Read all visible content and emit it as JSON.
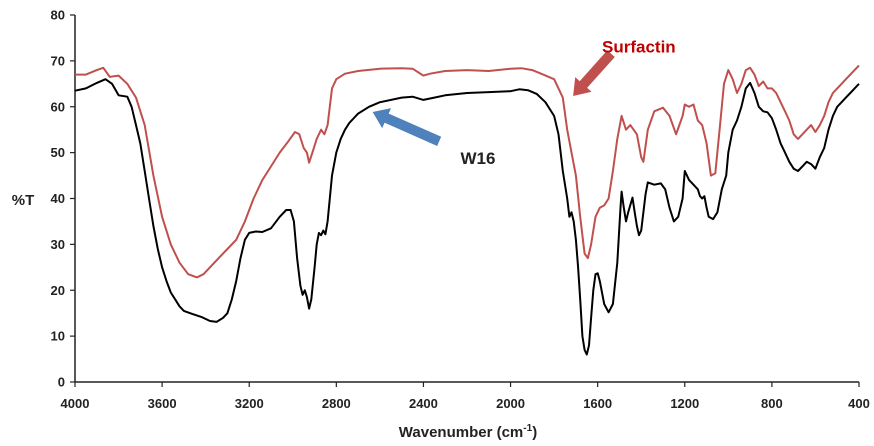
{
  "chart_data": {
    "type": "line",
    "title": "",
    "xlabel": "Wavenumber (cm",
    "xlabel_sup": "-1",
    "xlabel_tail": ")",
    "ylabel": "%T",
    "xlim": [
      4000,
      400
    ],
    "ylim": [
      0,
      80
    ],
    "x_ticks": [
      4000,
      3600,
      3200,
      2800,
      2400,
      2000,
      1600,
      1200,
      800,
      400
    ],
    "y_ticks": [
      0,
      10,
      20,
      30,
      40,
      50,
      60,
      70,
      80
    ],
    "grid": false,
    "legend": "none",
    "series": [
      {
        "name": "Surfactin",
        "color": "#c0504d",
        "points": [
          [
            4000,
            67
          ],
          [
            3950,
            67
          ],
          [
            3900,
            68
          ],
          [
            3870,
            68.5
          ],
          [
            3840,
            66.5
          ],
          [
            3800,
            66.8
          ],
          [
            3760,
            65
          ],
          [
            3720,
            62
          ],
          [
            3680,
            56
          ],
          [
            3640,
            45
          ],
          [
            3600,
            36
          ],
          [
            3560,
            30
          ],
          [
            3520,
            26
          ],
          [
            3480,
            23.5
          ],
          [
            3440,
            22.8
          ],
          [
            3410,
            23.5
          ],
          [
            3380,
            25
          ],
          [
            3340,
            27
          ],
          [
            3300,
            29
          ],
          [
            3260,
            31
          ],
          [
            3220,
            35
          ],
          [
            3180,
            40
          ],
          [
            3140,
            44
          ],
          [
            3100,
            47
          ],
          [
            3060,
            50
          ],
          [
            3020,
            52.5
          ],
          [
            2990,
            54.5
          ],
          [
            2970,
            54
          ],
          [
            2950,
            51
          ],
          [
            2935,
            50
          ],
          [
            2925,
            47.8
          ],
          [
            2910,
            50
          ],
          [
            2890,
            53
          ],
          [
            2870,
            55
          ],
          [
            2855,
            54
          ],
          [
            2840,
            56
          ],
          [
            2820,
            64
          ],
          [
            2800,
            66
          ],
          [
            2760,
            67.2
          ],
          [
            2700,
            67.8
          ],
          [
            2600,
            68.3
          ],
          [
            2500,
            68.4
          ],
          [
            2450,
            68.3
          ],
          [
            2400,
            66.8
          ],
          [
            2370,
            67.2
          ],
          [
            2300,
            67.8
          ],
          [
            2200,
            68
          ],
          [
            2100,
            67.8
          ],
          [
            2000,
            68.3
          ],
          [
            1950,
            68.4
          ],
          [
            1900,
            68
          ],
          [
            1850,
            67
          ],
          [
            1800,
            66
          ],
          [
            1760,
            62
          ],
          [
            1740,
            55
          ],
          [
            1720,
            50
          ],
          [
            1700,
            45
          ],
          [
            1680,
            36
          ],
          [
            1660,
            28
          ],
          [
            1645,
            27
          ],
          [
            1630,
            30
          ],
          [
            1610,
            36
          ],
          [
            1590,
            38
          ],
          [
            1570,
            38.5
          ],
          [
            1550,
            40
          ],
          [
            1530,
            46
          ],
          [
            1510,
            53
          ],
          [
            1490,
            58
          ],
          [
            1470,
            55
          ],
          [
            1450,
            56
          ],
          [
            1420,
            54
          ],
          [
            1400,
            49
          ],
          [
            1390,
            48
          ],
          [
            1370,
            55
          ],
          [
            1340,
            59
          ],
          [
            1300,
            59.8
          ],
          [
            1270,
            58
          ],
          [
            1240,
            54
          ],
          [
            1210,
            58
          ],
          [
            1200,
            60.5
          ],
          [
            1180,
            60
          ],
          [
            1160,
            60.5
          ],
          [
            1140,
            57
          ],
          [
            1120,
            56
          ],
          [
            1100,
            52
          ],
          [
            1080,
            45
          ],
          [
            1060,
            45.5
          ],
          [
            1040,
            55
          ],
          [
            1020,
            65
          ],
          [
            1000,
            68
          ],
          [
            980,
            66
          ],
          [
            960,
            63
          ],
          [
            940,
            65
          ],
          [
            920,
            68
          ],
          [
            900,
            68.5
          ],
          [
            880,
            67
          ],
          [
            860,
            64.5
          ],
          [
            840,
            65.5
          ],
          [
            820,
            64
          ],
          [
            800,
            64
          ],
          [
            780,
            63
          ],
          [
            760,
            61
          ],
          [
            740,
            59
          ],
          [
            720,
            57
          ],
          [
            700,
            54
          ],
          [
            680,
            53
          ],
          [
            660,
            54
          ],
          [
            640,
            55
          ],
          [
            620,
            56
          ],
          [
            600,
            54.5
          ],
          [
            580,
            56
          ],
          [
            560,
            58
          ],
          [
            540,
            61
          ],
          [
            520,
            63
          ],
          [
            500,
            64
          ],
          [
            480,
            65
          ],
          [
            460,
            66
          ],
          [
            440,
            67
          ],
          [
            420,
            68
          ],
          [
            400,
            69
          ]
        ]
      },
      {
        "name": "W16",
        "color": "#000000",
        "points": [
          [
            4000,
            63.5
          ],
          [
            3950,
            64
          ],
          [
            3900,
            65.2
          ],
          [
            3860,
            66
          ],
          [
            3830,
            65
          ],
          [
            3800,
            62.5
          ],
          [
            3760,
            62.2
          ],
          [
            3740,
            60
          ],
          [
            3720,
            56
          ],
          [
            3700,
            52
          ],
          [
            3680,
            46
          ],
          [
            3660,
            40
          ],
          [
            3640,
            34
          ],
          [
            3620,
            29
          ],
          [
            3600,
            25
          ],
          [
            3580,
            22
          ],
          [
            3560,
            19.5
          ],
          [
            3540,
            18
          ],
          [
            3520,
            16.5
          ],
          [
            3500,
            15.5
          ],
          [
            3460,
            14.8
          ],
          [
            3420,
            14.2
          ],
          [
            3380,
            13.3
          ],
          [
            3350,
            13.1
          ],
          [
            3320,
            14
          ],
          [
            3300,
            15
          ],
          [
            3280,
            18
          ],
          [
            3260,
            22
          ],
          [
            3240,
            27
          ],
          [
            3220,
            31
          ],
          [
            3200,
            32.5
          ],
          [
            3170,
            32.8
          ],
          [
            3140,
            32.7
          ],
          [
            3100,
            33.5
          ],
          [
            3060,
            36
          ],
          [
            3030,
            37.5
          ],
          [
            3010,
            37.5
          ],
          [
            2995,
            35
          ],
          [
            2980,
            27
          ],
          [
            2965,
            21
          ],
          [
            2955,
            19
          ],
          [
            2945,
            20
          ],
          [
            2935,
            18.5
          ],
          [
            2925,
            16
          ],
          [
            2915,
            18
          ],
          [
            2900,
            25
          ],
          [
            2890,
            30
          ],
          [
            2880,
            32.5
          ],
          [
            2870,
            32
          ],
          [
            2860,
            33
          ],
          [
            2850,
            32.2
          ],
          [
            2840,
            35
          ],
          [
            2820,
            45
          ],
          [
            2800,
            50
          ],
          [
            2780,
            53
          ],
          [
            2760,
            55
          ],
          [
            2740,
            56.5
          ],
          [
            2720,
            57.5
          ],
          [
            2700,
            58.5
          ],
          [
            2650,
            60
          ],
          [
            2600,
            61
          ],
          [
            2500,
            62
          ],
          [
            2450,
            62.2
          ],
          [
            2400,
            61.5
          ],
          [
            2350,
            62
          ],
          [
            2300,
            62.5
          ],
          [
            2200,
            63
          ],
          [
            2100,
            63.2
          ],
          [
            2000,
            63.4
          ],
          [
            1960,
            63.8
          ],
          [
            1920,
            63.6
          ],
          [
            1880,
            62.8
          ],
          [
            1840,
            61
          ],
          [
            1800,
            58
          ],
          [
            1780,
            54
          ],
          [
            1760,
            46
          ],
          [
            1740,
            40
          ],
          [
            1730,
            36
          ],
          [
            1720,
            37
          ],
          [
            1710,
            35
          ],
          [
            1700,
            31
          ],
          [
            1690,
            25
          ],
          [
            1680,
            18
          ],
          [
            1670,
            10
          ],
          [
            1660,
            7
          ],
          [
            1650,
            6
          ],
          [
            1640,
            8
          ],
          [
            1630,
            14
          ],
          [
            1620,
            20
          ],
          [
            1610,
            23.5
          ],
          [
            1600,
            23.7
          ],
          [
            1590,
            22
          ],
          [
            1570,
            17
          ],
          [
            1550,
            15.2
          ],
          [
            1530,
            17
          ],
          [
            1510,
            26
          ],
          [
            1495,
            38
          ],
          [
            1490,
            41.5
          ],
          [
            1480,
            38
          ],
          [
            1470,
            35
          ],
          [
            1460,
            37
          ],
          [
            1440,
            40.2
          ],
          [
            1430,
            37
          ],
          [
            1420,
            34
          ],
          [
            1410,
            32
          ],
          [
            1400,
            33
          ],
          [
            1380,
            41
          ],
          [
            1370,
            43.5
          ],
          [
            1340,
            43
          ],
          [
            1310,
            43.3
          ],
          [
            1290,
            42
          ],
          [
            1270,
            38
          ],
          [
            1250,
            35
          ],
          [
            1230,
            36
          ],
          [
            1210,
            40
          ],
          [
            1200,
            46
          ],
          [
            1180,
            44
          ],
          [
            1160,
            43
          ],
          [
            1140,
            42
          ],
          [
            1130,
            40.5
          ],
          [
            1120,
            40
          ],
          [
            1110,
            40.5
          ],
          [
            1100,
            38
          ],
          [
            1090,
            36
          ],
          [
            1070,
            35.5
          ],
          [
            1050,
            37
          ],
          [
            1030,
            42
          ],
          [
            1010,
            45
          ],
          [
            1000,
            50
          ],
          [
            980,
            55
          ],
          [
            960,
            57
          ],
          [
            940,
            60
          ],
          [
            920,
            64
          ],
          [
            900,
            65.2
          ],
          [
            880,
            63
          ],
          [
            860,
            60
          ],
          [
            840,
            59
          ],
          [
            820,
            58.8
          ],
          [
            800,
            57.5
          ],
          [
            780,
            55
          ],
          [
            760,
            52
          ],
          [
            740,
            50
          ],
          [
            720,
            48
          ],
          [
            700,
            46.5
          ],
          [
            680,
            46
          ],
          [
            660,
            47
          ],
          [
            640,
            48
          ],
          [
            620,
            47.5
          ],
          [
            600,
            46.5
          ],
          [
            580,
            49
          ],
          [
            560,
            51
          ],
          [
            540,
            55
          ],
          [
            520,
            58
          ],
          [
            500,
            60
          ],
          [
            480,
            61
          ],
          [
            460,
            62
          ],
          [
            440,
            63
          ],
          [
            420,
            64
          ],
          [
            400,
            65
          ]
        ]
      }
    ],
    "annotations": [
      {
        "text": "Surfactin",
        "color": "#c00000",
        "arrow_color": "#c0504d",
        "arrow_from": [
          1540,
          71.5
        ],
        "arrow_to": [
          1710,
          62.5
        ],
        "text_at": [
          1580,
          71.8
        ]
      },
      {
        "text": "W16",
        "color": "#222222",
        "arrow_color": "#4f81bd",
        "arrow_from": [
          2330,
          52.5
        ],
        "arrow_to": [
          2630,
          58.8
        ],
        "text_at": [
          2230,
          47.5
        ]
      }
    ]
  }
}
